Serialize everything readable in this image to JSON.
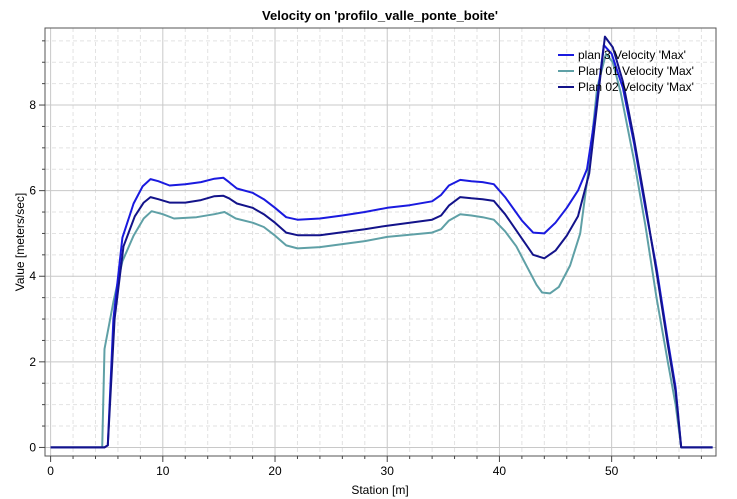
{
  "chart_data": {
    "type": "line",
    "title": "Velocity on 'profilo_valle_ponte_boite'",
    "xlabel": "Station [m]",
    "ylabel": "Value [meters/sec]",
    "xlim": [
      -0.5,
      59.3
    ],
    "ylim": [
      -0.2,
      9.8
    ],
    "x_ticks": [
      0,
      10,
      20,
      30,
      40,
      50
    ],
    "x_tick_labels": [
      "0",
      "10",
      "20",
      "30",
      "40",
      "50"
    ],
    "y_ticks": [
      0,
      2,
      4,
      6,
      8
    ],
    "y_tick_labels": [
      "0",
      "2",
      "4",
      "6",
      "8"
    ],
    "grid": true,
    "legend_position": "top-right",
    "series": [
      {
        "name": "plan 3 Velocity 'Max'",
        "color": "#1a1adf",
        "x": [
          0,
          4.8,
          5.1,
          5.6,
          6.4,
          7.4,
          8.2,
          8.9,
          9.6,
          10.6,
          12,
          13.4,
          14.6,
          15.4,
          15.9,
          16.6,
          18,
          19,
          20,
          21,
          22,
          24,
          26,
          28,
          30,
          32,
          34,
          34.8,
          35.5,
          36.5,
          37.5,
          38.5,
          39.5,
          40.5,
          42,
          43,
          44,
          45,
          46,
          47,
          47.8,
          48.5,
          49.3,
          50,
          51,
          52,
          53,
          54,
          55,
          55.7,
          56.2,
          56.5,
          59
        ],
        "y": [
          0,
          0,
          0.05,
          3.0,
          4.9,
          5.7,
          6.1,
          6.27,
          6.22,
          6.12,
          6.15,
          6.2,
          6.28,
          6.3,
          6.2,
          6.05,
          5.95,
          5.8,
          5.6,
          5.38,
          5.32,
          5.35,
          5.42,
          5.5,
          5.6,
          5.66,
          5.75,
          5.9,
          6.12,
          6.25,
          6.22,
          6.2,
          6.15,
          5.85,
          5.3,
          5.02,
          5.0,
          5.25,
          5.6,
          6.0,
          6.5,
          7.7,
          9.4,
          9.2,
          8.4,
          7.1,
          5.6,
          4.2,
          2.5,
          1.4,
          0.0,
          0.0,
          0.0
        ]
      },
      {
        "name": "Plan 01 Velocity 'Max'",
        "color": "#5fa0a6",
        "x": [
          0,
          4.6,
          4.8,
          5.6,
          6.4,
          7.4,
          8.3,
          9.0,
          10,
          11,
          13,
          14.6,
          15.5,
          16.5,
          18,
          19,
          20,
          21,
          22,
          24,
          26,
          28,
          30,
          32,
          34,
          34.8,
          35.5,
          36.5,
          37.5,
          38.5,
          39.5,
          40.5,
          41.5,
          42.5,
          43.3,
          43.8,
          44.5,
          45.3,
          46.3,
          47.2,
          48,
          48.7,
          49.5,
          50.1,
          50.8,
          52,
          53,
          54,
          55,
          55.7,
          56.2,
          56.5,
          59
        ],
        "y": [
          0,
          0,
          2.3,
          3.4,
          4.35,
          4.95,
          5.35,
          5.52,
          5.45,
          5.35,
          5.38,
          5.45,
          5.5,
          5.35,
          5.25,
          5.15,
          4.95,
          4.72,
          4.65,
          4.68,
          4.75,
          4.82,
          4.92,
          4.97,
          5.02,
          5.1,
          5.3,
          5.45,
          5.42,
          5.38,
          5.32,
          5.05,
          4.7,
          4.2,
          3.8,
          3.62,
          3.6,
          3.75,
          4.25,
          5.0,
          6.6,
          8.4,
          9.2,
          9.0,
          8.3,
          6.7,
          5.2,
          3.5,
          2.0,
          1.0,
          0.0,
          0.0,
          0.0
        ]
      },
      {
        "name": "Plan 02 Velocity 'Max'",
        "color": "#13138a",
        "x": [
          0,
          4.8,
          5.1,
          5.7,
          6.5,
          7.5,
          8.3,
          8.9,
          9.6,
          10.6,
          12,
          13.4,
          14.6,
          15.4,
          15.9,
          16.6,
          18,
          19,
          20,
          21,
          22,
          24,
          26,
          28,
          30,
          32,
          34,
          34.8,
          35.5,
          36.5,
          37.5,
          38.5,
          39.5,
          40.5,
          42,
          43,
          44,
          45,
          46,
          47,
          48,
          48.7,
          49.4,
          50.1,
          51,
          52,
          53,
          54,
          55,
          55.7,
          56.2,
          56.5,
          59
        ],
        "y": [
          0,
          0,
          0.05,
          3.0,
          4.7,
          5.4,
          5.72,
          5.85,
          5.8,
          5.72,
          5.72,
          5.78,
          5.87,
          5.88,
          5.82,
          5.7,
          5.6,
          5.45,
          5.25,
          5.02,
          4.96,
          4.96,
          5.03,
          5.1,
          5.18,
          5.25,
          5.32,
          5.42,
          5.65,
          5.85,
          5.82,
          5.8,
          5.76,
          5.45,
          4.88,
          4.5,
          4.42,
          4.6,
          4.95,
          5.4,
          6.4,
          8.0,
          9.6,
          9.35,
          8.55,
          7.2,
          5.7,
          4.1,
          2.4,
          1.3,
          0.0,
          0.0,
          0.0
        ]
      }
    ]
  }
}
